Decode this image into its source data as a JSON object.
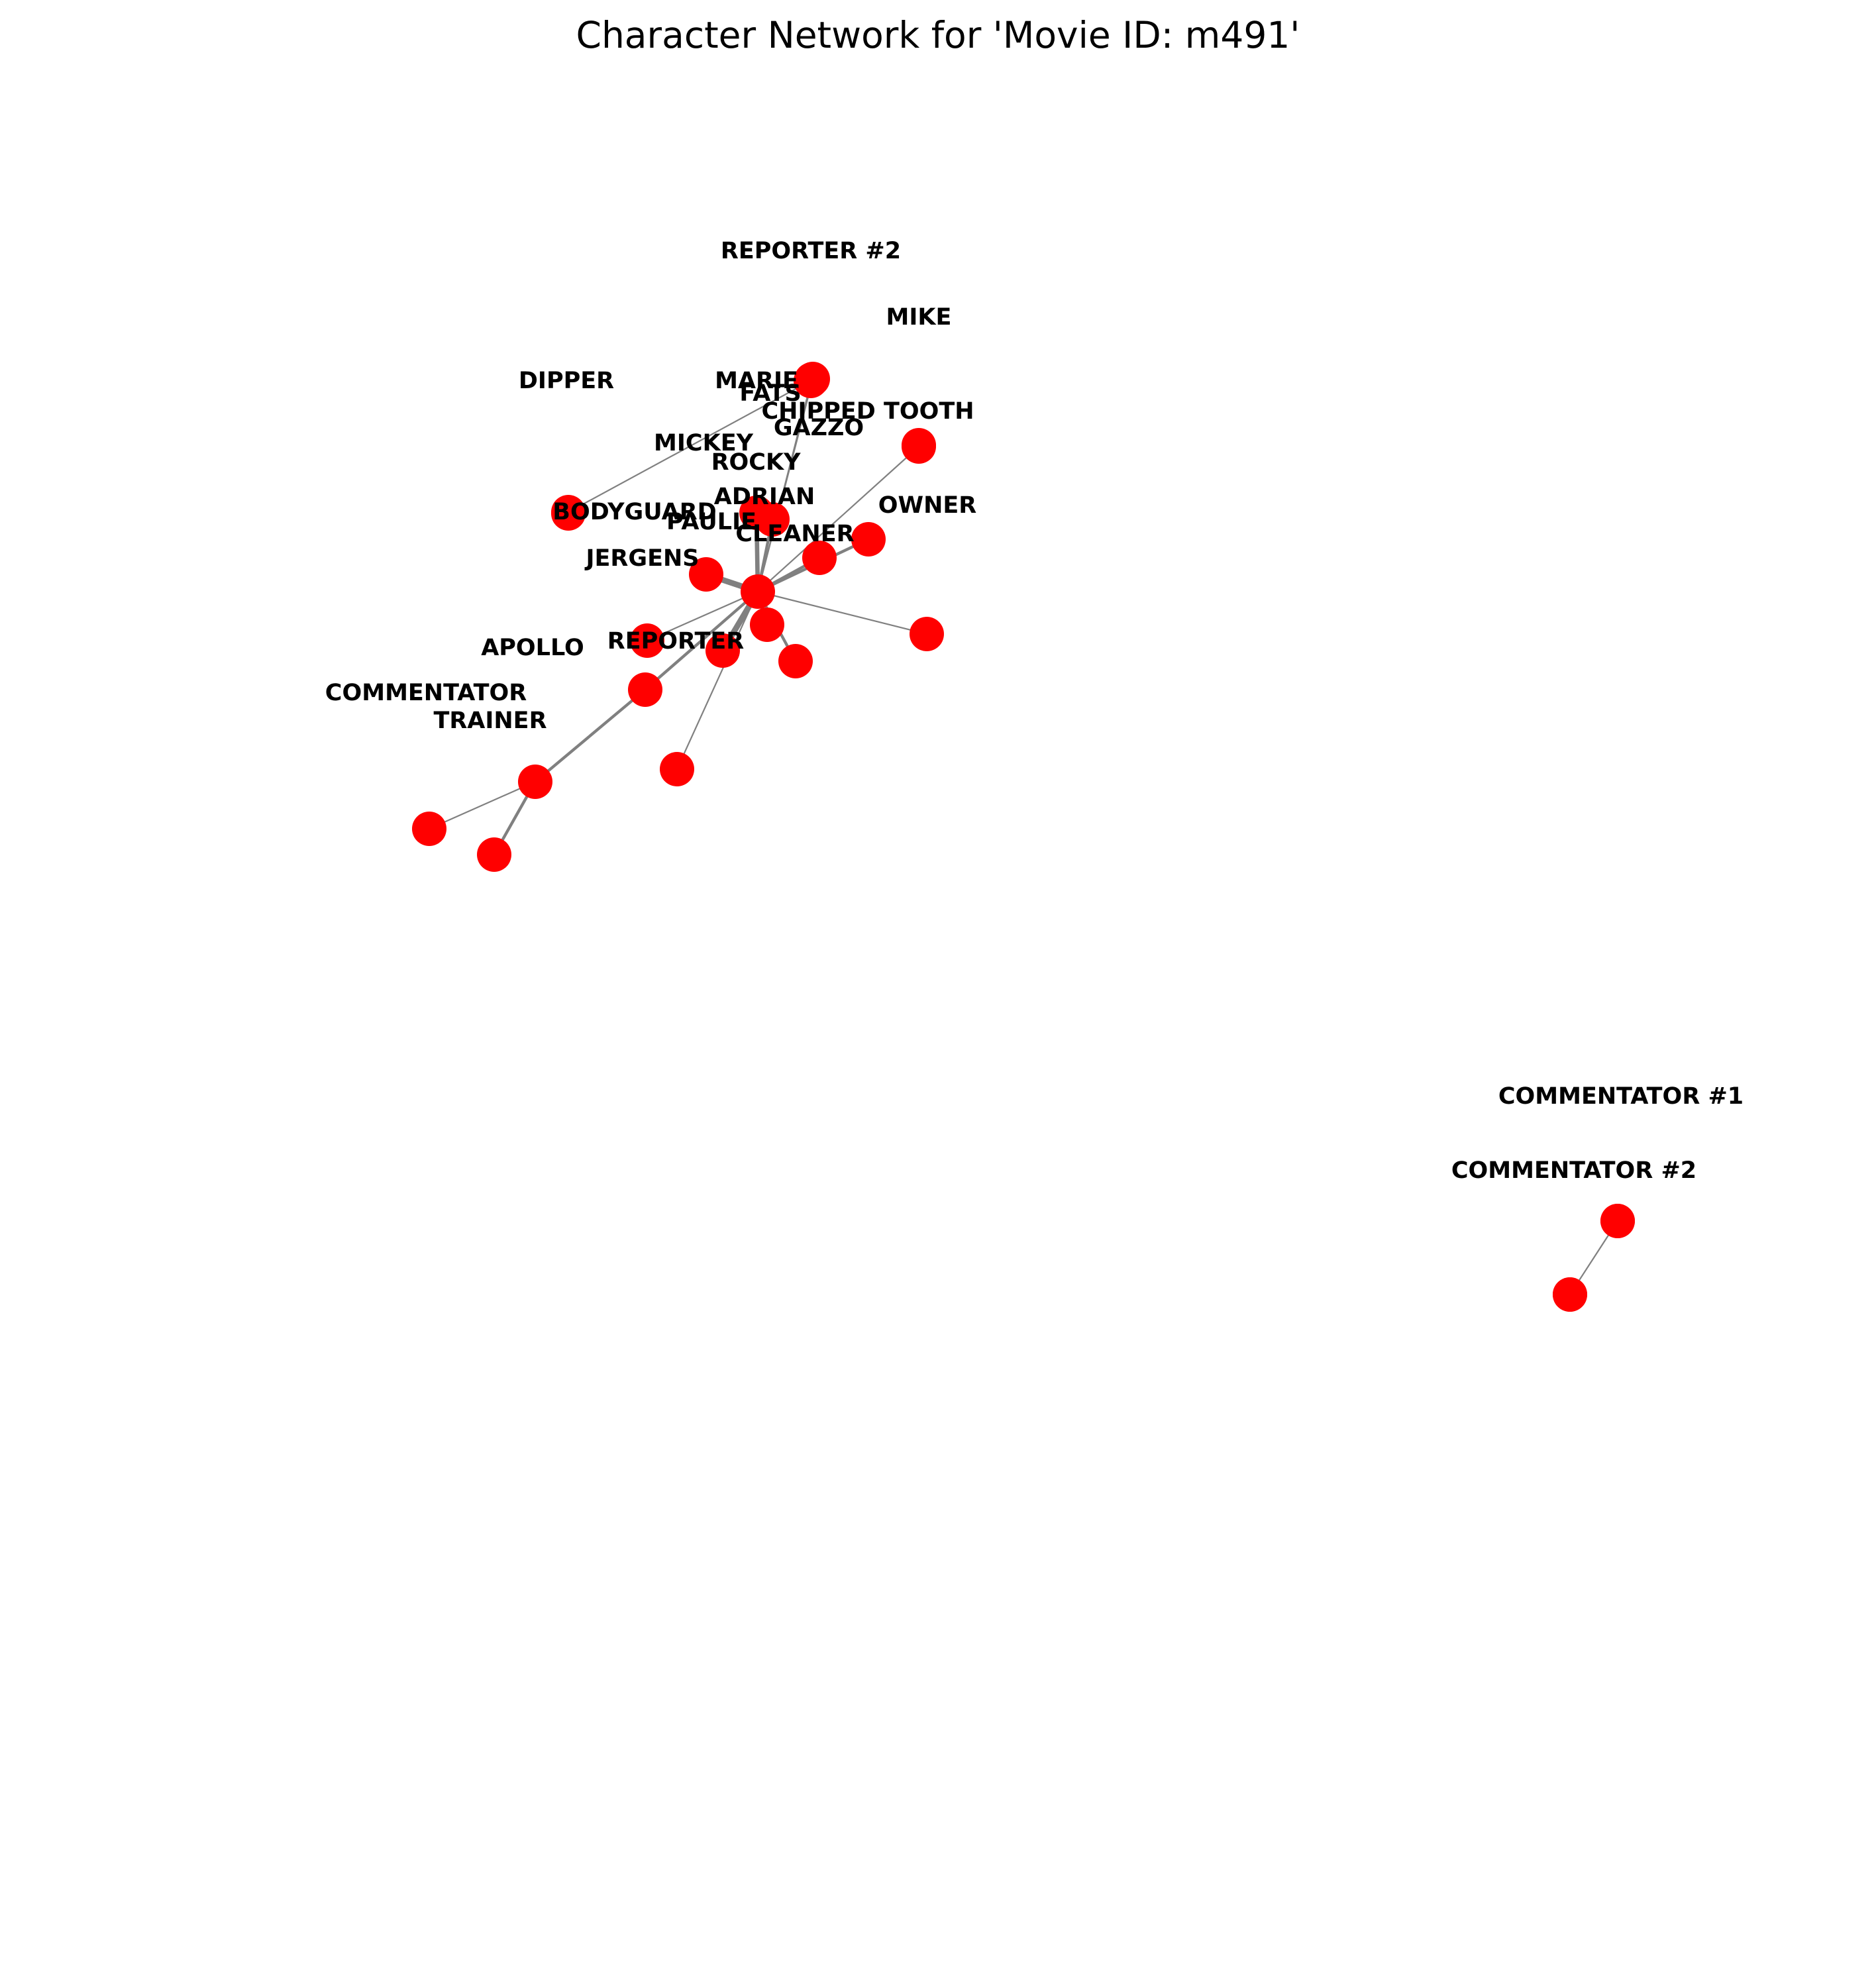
{
  "title": "Character Network for 'Movie ID: m491'",
  "colors": {
    "node": "#ff0000",
    "edge": "#808080",
    "label": "#000000",
    "background": "#ffffff"
  },
  "nodes": [
    {
      "id": "rocky",
      "label": "ROCKY"
    },
    {
      "id": "adrian",
      "label": "ADRIAN"
    },
    {
      "id": "paulie",
      "label": "PAULIE"
    },
    {
      "id": "mickey",
      "label": "MICKEY"
    },
    {
      "id": "gazzo",
      "label": "GAZZO"
    },
    {
      "id": "marie",
      "label": "MARIE"
    },
    {
      "id": "fats",
      "label": "FATS"
    },
    {
      "id": "reporter2",
      "label": "REPORTER #2"
    },
    {
      "id": "mike",
      "label": "MIKE"
    },
    {
      "id": "chipped_tooth",
      "label": "CHIPPED TOOTH"
    },
    {
      "id": "dipper",
      "label": "DIPPER"
    },
    {
      "id": "bodyguard",
      "label": "BODYGUARD"
    },
    {
      "id": "cleaner",
      "label": "CLEANER"
    },
    {
      "id": "owner",
      "label": "OWNER"
    },
    {
      "id": "jergens",
      "label": "JERGENS"
    },
    {
      "id": "reporter",
      "label": "REPORTER"
    },
    {
      "id": "apollo",
      "label": "APOLLO"
    },
    {
      "id": "commentator",
      "label": "COMMENTATOR"
    },
    {
      "id": "trainer",
      "label": "TRAINER"
    },
    {
      "id": "commentator1",
      "label": "COMMENTATOR #1"
    },
    {
      "id": "commentator2",
      "label": "COMMENTATOR #2"
    },
    {
      "id": "n1",
      "label": ""
    },
    {
      "id": "n2",
      "label": ""
    },
    {
      "id": "n3",
      "label": ""
    },
    {
      "id": "n4",
      "label": ""
    },
    {
      "id": "n5",
      "label": ""
    },
    {
      "id": "n6",
      "label": ""
    },
    {
      "id": "n7",
      "label": ""
    },
    {
      "id": "n8",
      "label": ""
    }
  ],
  "edges": [
    {
      "source": "rocky",
      "target": "adrian",
      "weight": 3
    },
    {
      "source": "rocky",
      "target": "paulie",
      "weight": 2
    },
    {
      "source": "rocky",
      "target": "gazzo",
      "weight": 1
    },
    {
      "source": "rocky",
      "target": "chipped_tooth",
      "weight": 1
    },
    {
      "source": "rocky",
      "target": "cleaner",
      "weight": 2
    },
    {
      "source": "rocky",
      "target": "owner",
      "weight": 2
    },
    {
      "source": "rocky",
      "target": "jergens",
      "weight": 4
    },
    {
      "source": "rocky",
      "target": "n1",
      "weight": 1
    },
    {
      "source": "rocky",
      "target": "n2",
      "weight": 3
    },
    {
      "source": "rocky",
      "target": "n3",
      "weight": 2
    },
    {
      "source": "rocky",
      "target": "apollo",
      "weight": 1
    },
    {
      "source": "rocky",
      "target": "reporter",
      "weight": 4
    },
    {
      "source": "rocky",
      "target": "commentator",
      "weight": 2
    },
    {
      "source": "rocky",
      "target": "n4",
      "weight": 1
    },
    {
      "source": "rocky",
      "target": "mickey",
      "weight": 1
    },
    {
      "source": "mickey",
      "target": "dipper",
      "weight": 1
    },
    {
      "source": "commentator",
      "target": "trainer",
      "weight": 2
    },
    {
      "source": "trainer",
      "target": "n5",
      "weight": 1
    },
    {
      "source": "trainer",
      "target": "n6",
      "weight": 2
    },
    {
      "source": "n7",
      "target": "n8",
      "weight": 1
    }
  ]
}
